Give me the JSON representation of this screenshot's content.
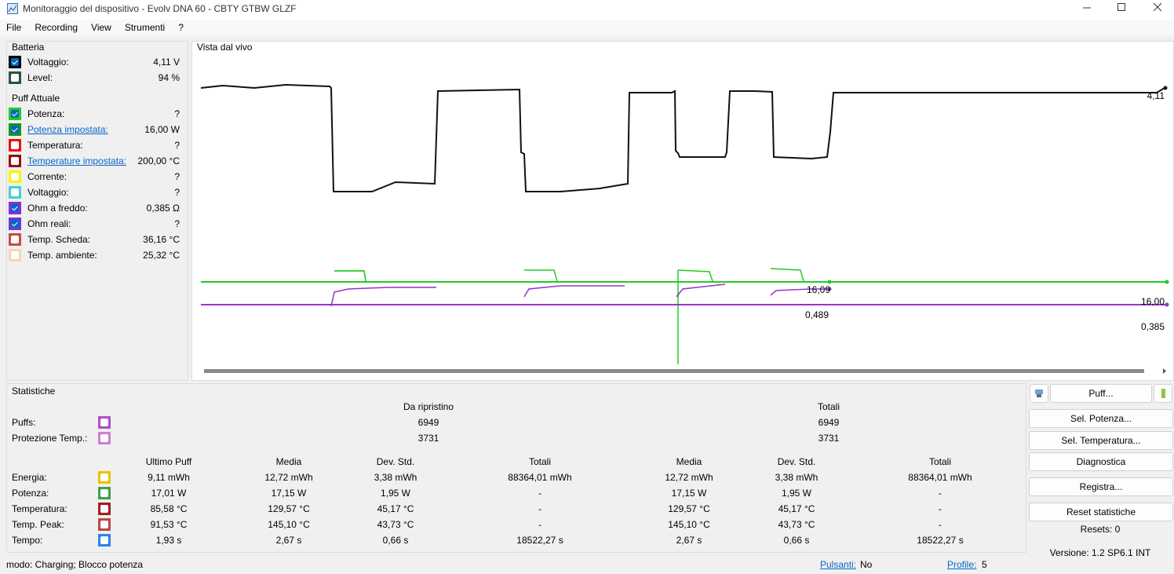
{
  "window": {
    "title": "Monitoraggio del dispositivo - Evolv DNA 60 - CBTY GTBW GLZF"
  },
  "menu": [
    "File",
    "Recording",
    "View",
    "Strumenti",
    "?"
  ],
  "battery": {
    "title": "Batteria",
    "rows": [
      {
        "label": "Voltaggio:",
        "value": "4,11 V",
        "color": "#000000",
        "checked": true
      },
      {
        "label": "Level:",
        "value": "94 %",
        "color": "#2f4f4f",
        "checked": false
      }
    ]
  },
  "puff": {
    "title": "Puff Attuale",
    "rows": [
      {
        "label": "Potenza:",
        "value": "?",
        "color": "#22cc22",
        "checked": true
      },
      {
        "label": "Potenza impostata:",
        "value": "16,00 W",
        "color": "#119911",
        "checked": true,
        "link": true
      },
      {
        "label": "Temperatura:",
        "value": "?",
        "color": "#ee1111",
        "checked": false
      },
      {
        "label": "Temperature impostata:",
        "value": "200,00 °C",
        "color": "#991111",
        "checked": false,
        "link": true
      },
      {
        "label": "Corrente:",
        "value": "?",
        "color": "#f5f500",
        "checked": false
      },
      {
        "label": "Voltaggio:",
        "value": "?",
        "color": "#48d1cc",
        "checked": false
      },
      {
        "label": "Ohm a freddo:",
        "value": "0,385 Ω",
        "color": "#8a2be2",
        "checked": true
      },
      {
        "label": "Ohm reali:",
        "value": "?",
        "color": "#6a3ad0",
        "checked": true
      },
      {
        "label": "Temp. Scheda:",
        "value": "36,16 °C",
        "color": "#c0504d",
        "checked": false
      },
      {
        "label": "Temp. ambiente:",
        "value": "25,32 °C",
        "color": "#f0d8b0",
        "checked": false
      }
    ]
  },
  "live": {
    "title": "Vista dal vivo",
    "labels": [
      "4,11",
      "16,09",
      "16,00",
      "0,489",
      "0,385"
    ]
  },
  "stats": {
    "title": "Statistiche",
    "top_headers": [
      "Da ripristino",
      "Totali"
    ],
    "top_rows": [
      {
        "label": "Puffs:",
        "color": "#b050c8",
        "values": [
          "6949",
          "6949"
        ]
      },
      {
        "label": "Protezione Temp.:",
        "color": "#d080d0",
        "values": [
          "3731",
          "3731"
        ]
      }
    ],
    "headers": [
      "Ultimo Puff",
      "Media",
      "Dev. Std.",
      "Totali",
      "Media",
      "Dev. Std.",
      "Totali"
    ],
    "rows": [
      {
        "label": "Energia:",
        "color": "#f0c000",
        "values": [
          "9,11 mWh",
          "12,72 mWh",
          "3,38 mWh",
          "88364,01 mWh",
          "12,72 mWh",
          "3,38 mWh",
          "88364,01 mWh"
        ]
      },
      {
        "label": "Potenza:",
        "color": "#40a050",
        "values": [
          "17,01 W",
          "17,15 W",
          "1,95 W",
          "-",
          "17,15 W",
          "1,95 W",
          "-"
        ]
      },
      {
        "label": "Temperatura:",
        "color": "#a02020",
        "values": [
          "85,58 °C",
          "129,57 °C",
          "45,17 °C",
          "-",
          "129,57 °C",
          "45,17 °C",
          "-"
        ]
      },
      {
        "label": "Temp. Peak:",
        "color": "#c04848",
        "values": [
          "91,53 °C",
          "145,10 °C",
          "43,73 °C",
          "-",
          "145,10 °C",
          "43,73 °C",
          "-"
        ]
      },
      {
        "label": "Tempo:",
        "color": "#3080f0",
        "values": [
          "1,93 s",
          "2,67 s",
          "0,66 s",
          "18522,27 s",
          "2,67 s",
          "0,66 s",
          "18522,27 s"
        ]
      }
    ]
  },
  "buttons": [
    "Puff...",
    "Sel. Potenza...",
    "Sel. Temperatura...",
    "Diagnostica",
    "Registra...",
    "Reset statistiche"
  ],
  "resets": "Resets: 0",
  "version": "Versione: 1.2 SP6.1 INT",
  "status": {
    "mode": "modo: Charging; Blocco potenza",
    "pulsanti_label": "Pulsanti:",
    "pulsanti": "No",
    "profile_label": "Profile:",
    "profile": "5"
  }
}
